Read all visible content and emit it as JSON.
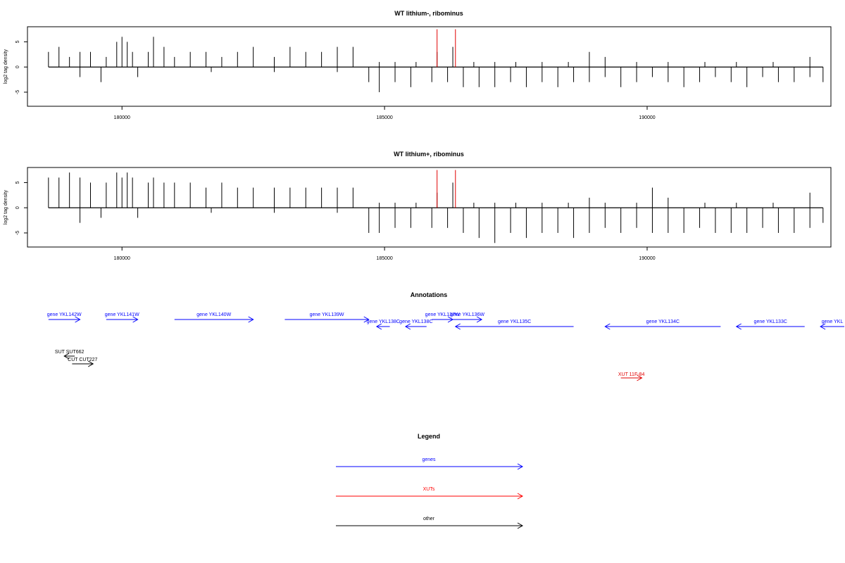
{
  "chart_data": [
    {
      "type": "bar",
      "title": "WT lithium-, ribominus",
      "ylabel": "log2 tag density",
      "xlim": [
        178200,
        193500
      ],
      "ylim": [
        -7.8,
        8
      ],
      "yticks": [
        -5,
        0,
        5
      ],
      "xticks": [
        180000,
        185000,
        190000
      ],
      "series": [
        {
          "name": "upper",
          "values": [
            [
              178600,
              3
            ],
            [
              178800,
              4
            ],
            [
              179000,
              2
            ],
            [
              179200,
              3
            ],
            [
              179400,
              3
            ],
            [
              179700,
              2
            ],
            [
              179900,
              5
            ],
            [
              180000,
              6
            ],
            [
              180100,
              5
            ],
            [
              180200,
              3
            ],
            [
              180500,
              3
            ],
            [
              180600,
              6
            ],
            [
              180800,
              4
            ],
            [
              181000,
              2
            ],
            [
              181300,
              3
            ],
            [
              181600,
              3
            ],
            [
              181900,
              2
            ],
            [
              182200,
              3
            ],
            [
              182500,
              4
            ],
            [
              182900,
              2
            ],
            [
              183200,
              4
            ],
            [
              183500,
              3
            ],
            [
              183800,
              3
            ],
            [
              184100,
              4
            ],
            [
              184400,
              4
            ],
            [
              184900,
              1
            ],
            [
              185200,
              1
            ],
            [
              185600,
              1
            ],
            [
              186000,
              3
            ],
            [
              186300,
              4
            ],
            [
              186700,
              1
            ],
            [
              187100,
              1
            ],
            [
              187500,
              1
            ],
            [
              188000,
              1
            ],
            [
              188500,
              1
            ],
            [
              188900,
              3
            ],
            [
              189200,
              2
            ],
            [
              189800,
              1
            ],
            [
              190400,
              1
            ],
            [
              191100,
              1
            ],
            [
              191700,
              1
            ],
            [
              192400,
              1
            ],
            [
              193100,
              2
            ]
          ]
        },
        {
          "name": "lower",
          "values": [
            [
              179200,
              -2
            ],
            [
              179600,
              -3
            ],
            [
              180300,
              -2
            ],
            [
              181700,
              -1
            ],
            [
              182900,
              -1
            ],
            [
              184100,
              -1
            ],
            [
              184700,
              -3
            ],
            [
              184900,
              -5
            ],
            [
              185200,
              -3
            ],
            [
              185500,
              -4
            ],
            [
              185900,
              -3
            ],
            [
              186200,
              -3
            ],
            [
              186500,
              -4
            ],
            [
              186800,
              -4
            ],
            [
              187100,
              -4
            ],
            [
              187400,
              -3
            ],
            [
              187700,
              -4
            ],
            [
              188000,
              -3
            ],
            [
              188300,
              -4
            ],
            [
              188600,
              -3
            ],
            [
              188900,
              -3
            ],
            [
              189200,
              -2
            ],
            [
              189500,
              -4
            ],
            [
              189800,
              -3
            ],
            [
              190100,
              -2
            ],
            [
              190400,
              -3
            ],
            [
              190700,
              -4
            ],
            [
              191000,
              -3
            ],
            [
              191300,
              -2
            ],
            [
              191600,
              -3
            ],
            [
              191900,
              -4
            ],
            [
              192200,
              -2
            ],
            [
              192500,
              -3
            ],
            [
              192800,
              -3
            ],
            [
              193100,
              -2
            ],
            [
              193350,
              -3
            ]
          ]
        }
      ],
      "highlights": [
        186000,
        186350
      ]
    },
    {
      "type": "bar",
      "title": "WT lithium+, ribominus",
      "ylabel": "log2 tag density",
      "xlim": [
        178200,
        193500
      ],
      "ylim": [
        -7.8,
        8
      ],
      "yticks": [
        -5,
        0,
        5
      ],
      "xticks": [
        180000,
        185000,
        190000
      ],
      "series": [
        {
          "name": "upper",
          "values": [
            [
              178600,
              6
            ],
            [
              178800,
              6
            ],
            [
              179000,
              7
            ],
            [
              179200,
              6
            ],
            [
              179400,
              5
            ],
            [
              179700,
              5
            ],
            [
              179900,
              7
            ],
            [
              180000,
              6
            ],
            [
              180100,
              7
            ],
            [
              180200,
              6
            ],
            [
              180500,
              5
            ],
            [
              180600,
              6
            ],
            [
              180800,
              5
            ],
            [
              181000,
              5
            ],
            [
              181300,
              5
            ],
            [
              181600,
              4
            ],
            [
              181900,
              5
            ],
            [
              182200,
              4
            ],
            [
              182500,
              4
            ],
            [
              182900,
              4
            ],
            [
              183200,
              4
            ],
            [
              183500,
              4
            ],
            [
              183800,
              4
            ],
            [
              184100,
              4
            ],
            [
              184400,
              4
            ],
            [
              184900,
              1
            ],
            [
              185200,
              1
            ],
            [
              185600,
              1
            ],
            [
              186000,
              3
            ],
            [
              186300,
              5
            ],
            [
              186700,
              1
            ],
            [
              187100,
              1
            ],
            [
              187500,
              1
            ],
            [
              188000,
              1
            ],
            [
              188500,
              1
            ],
            [
              188900,
              2
            ],
            [
              189200,
              1
            ],
            [
              189800,
              1
            ],
            [
              190100,
              4
            ],
            [
              190400,
              2
            ],
            [
              191100,
              1
            ],
            [
              191700,
              1
            ],
            [
              192400,
              1
            ],
            [
              193100,
              3
            ]
          ]
        },
        {
          "name": "lower",
          "values": [
            [
              179200,
              -3
            ],
            [
              179600,
              -2
            ],
            [
              180300,
              -2
            ],
            [
              181700,
              -1
            ],
            [
              182900,
              -1
            ],
            [
              184100,
              -1
            ],
            [
              184700,
              -5
            ],
            [
              184900,
              -5
            ],
            [
              185200,
              -4
            ],
            [
              185500,
              -4
            ],
            [
              185900,
              -4
            ],
            [
              186200,
              -4
            ],
            [
              186500,
              -5
            ],
            [
              186800,
              -6
            ],
            [
              187100,
              -7
            ],
            [
              187400,
              -5
            ],
            [
              187700,
              -6
            ],
            [
              188000,
              -5
            ],
            [
              188300,
              -5
            ],
            [
              188600,
              -6
            ],
            [
              188900,
              -5
            ],
            [
              189200,
              -4
            ],
            [
              189500,
              -5
            ],
            [
              189800,
              -4
            ],
            [
              190100,
              -5
            ],
            [
              190400,
              -5
            ],
            [
              190700,
              -5
            ],
            [
              191000,
              -4
            ],
            [
              191300,
              -5
            ],
            [
              191600,
              -5
            ],
            [
              191900,
              -5
            ],
            [
              192200,
              -4
            ],
            [
              192500,
              -5
            ],
            [
              192800,
              -5
            ],
            [
              193100,
              -4
            ],
            [
              193350,
              -3
            ]
          ]
        }
      ],
      "highlights": [
        186000,
        186350
      ]
    }
  ],
  "annotations": {
    "title": "Annotations",
    "genes": [
      {
        "label": "gene YKL142W",
        "start": 178600,
        "end": 179200,
        "dir": "+",
        "row": 0
      },
      {
        "label": "gene YKL141W",
        "start": 179700,
        "end": 180300,
        "dir": "+",
        "row": 0
      },
      {
        "label": "gene YKL140W",
        "start": 181000,
        "end": 182500,
        "dir": "+",
        "row": 0
      },
      {
        "label": "gene YKL139W",
        "start": 183100,
        "end": 184700,
        "dir": "+",
        "row": 0
      },
      {
        "label": "gene YKL138C",
        "start": 184850,
        "end": 185100,
        "dir": "-",
        "row": 1
      },
      {
        "label": "gene YKL138C",
        "start": 185400,
        "end": 185800,
        "dir": "-",
        "row": 1
      },
      {
        "label": "gene YKL137W",
        "start": 185900,
        "end": 186300,
        "dir": "+",
        "row": 0
      },
      {
        "label": "gene YKL136W",
        "start": 186300,
        "end": 186850,
        "dir": "+",
        "row": 0
      },
      {
        "label": "gene YKL135C",
        "start": 186350,
        "end": 188600,
        "dir": "-",
        "row": 1
      },
      {
        "label": "gene YKL134C",
        "start": 189200,
        "end": 191400,
        "dir": "-",
        "row": 1
      },
      {
        "label": "gene YKL133C",
        "start": 191700,
        "end": 193000,
        "dir": "-",
        "row": 1
      },
      {
        "label": "gene YKL",
        "start": 193300,
        "end": 194200,
        "dir": "-",
        "row": 1
      }
    ],
    "xuts": [
      {
        "label": "XUT 11F-84",
        "start": 189500,
        "end": 189900,
        "dir": "+"
      }
    ],
    "other": [
      {
        "label": "SUT SUT662",
        "start": 178900,
        "end": 179100,
        "dir": "-"
      },
      {
        "label": "CUT CUT227",
        "start": 179050,
        "end": 179450,
        "dir": "+"
      }
    ]
  },
  "legend": {
    "title": "Legend",
    "items": [
      {
        "label": "genes",
        "color": "#0000ff"
      },
      {
        "label": "XUTs",
        "color": "#ff0000"
      },
      {
        "label": "other",
        "color": "#000000"
      }
    ]
  }
}
